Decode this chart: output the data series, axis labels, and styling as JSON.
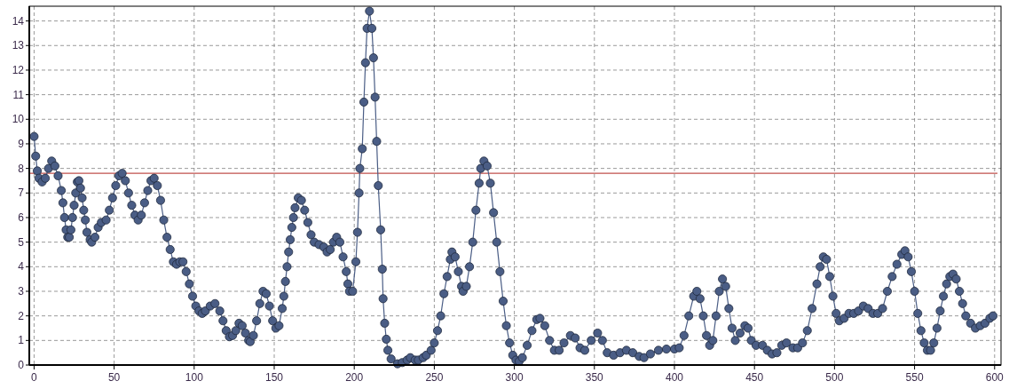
{
  "chart_data": {
    "type": "line",
    "marker": "circle",
    "line_style": "solid",
    "grid": true,
    "xlim": [
      -3,
      604
    ],
    "ylim": [
      0,
      14.6
    ],
    "xticks": [
      0,
      50,
      100,
      150,
      200,
      250,
      300,
      350,
      400,
      450,
      500,
      550,
      600
    ],
    "yticks": [
      0,
      1,
      2,
      3,
      4,
      5,
      6,
      7,
      8,
      9,
      10,
      11,
      12,
      13,
      14
    ],
    "ref_lines": [
      {
        "axis": "y",
        "value": 7.8,
        "color": "#c0504d"
      }
    ],
    "series": [
      {
        "color": "#4a5d85",
        "x": [
          0,
          1,
          2,
          3,
          5,
          7,
          9,
          11,
          13,
          15,
          17,
          18,
          19,
          20,
          21,
          22,
          23,
          24,
          25,
          26,
          27,
          28,
          29,
          30,
          31,
          32,
          33,
          35,
          36,
          38,
          40,
          42,
          45,
          47,
          49,
          51,
          53,
          55,
          57,
          59,
          61,
          63,
          65,
          67,
          69,
          71,
          73,
          75,
          77,
          79,
          81,
          83,
          85,
          87,
          89,
          91,
          93,
          95,
          97,
          99,
          101,
          103,
          105,
          107,
          110,
          113,
          116,
          118,
          120,
          122,
          124,
          126,
          128,
          130,
          132,
          134,
          135,
          137,
          139,
          141,
          143,
          145,
          147,
          149,
          151,
          153,
          155,
          156,
          157,
          158,
          159,
          160,
          161,
          162,
          163,
          165,
          167,
          169,
          171,
          173,
          175,
          178,
          181,
          183,
          185,
          187,
          189,
          191,
          193,
          195,
          196,
          197,
          199,
          201,
          202,
          203,
          203.5,
          205,
          206,
          207,
          208,
          209.5,
          211,
          212,
          213,
          214,
          215,
          216.5,
          217.5,
          218,
          219,
          220,
          221,
          223,
          227,
          230,
          233,
          235,
          238,
          240,
          243,
          245,
          248,
          250,
          252,
          254,
          256,
          258,
          260,
          261,
          263,
          265,
          267,
          268,
          270,
          272,
          274,
          276,
          278,
          279,
          281,
          283,
          285,
          287,
          289,
          291,
          293,
          295,
          297,
          299,
          301,
          303,
          305,
          308,
          311,
          314,
          316,
          319,
          322,
          325,
          328,
          331,
          335,
          338,
          341,
          344,
          348,
          352,
          355,
          358,
          362,
          366,
          370,
          374,
          378,
          381,
          385,
          390,
          395,
          400,
          403,
          406,
          409,
          412,
          414,
          416,
          418,
          420,
          422,
          424,
          426,
          428,
          430,
          432,
          434,
          436,
          438,
          441,
          444,
          446,
          448,
          451,
          455,
          458,
          461,
          464,
          467,
          470,
          474,
          477,
          480,
          483,
          486,
          489,
          491,
          493,
          495,
          497,
          499,
          501,
          503,
          506,
          509,
          512,
          515,
          518,
          521,
          524,
          527,
          530,
          533,
          536,
          539,
          542,
          544,
          546,
          548,
          550,
          552,
          554,
          556,
          558,
          560,
          562,
          564,
          566,
          568,
          570,
          572,
          574,
          576,
          578,
          580,
          582,
          585,
          588,
          591,
          594,
          597,
          599
        ],
        "values": [
          9.3,
          8.5,
          7.9,
          7.6,
          7.45,
          7.6,
          8.0,
          8.3,
          8.1,
          7.7,
          7.1,
          6.6,
          6.0,
          5.5,
          5.2,
          5.2,
          5.5,
          6.0,
          6.5,
          7.0,
          7.45,
          7.5,
          7.2,
          6.8,
          6.3,
          5.9,
          5.4,
          5.1,
          5.0,
          5.2,
          5.6,
          5.8,
          5.9,
          6.3,
          6.8,
          7.3,
          7.7,
          7.8,
          7.5,
          7.0,
          6.5,
          6.1,
          5.9,
          6.1,
          6.6,
          7.1,
          7.5,
          7.6,
          7.3,
          6.7,
          5.9,
          5.2,
          4.7,
          4.2,
          4.1,
          4.2,
          4.2,
          3.8,
          3.3,
          2.8,
          2.4,
          2.2,
          2.1,
          2.2,
          2.4,
          2.5,
          2.2,
          1.8,
          1.4,
          1.15,
          1.2,
          1.4,
          1.7,
          1.6,
          1.3,
          1.0,
          0.95,
          1.2,
          1.8,
          2.5,
          3.0,
          2.9,
          2.4,
          1.8,
          1.5,
          1.6,
          2.3,
          2.8,
          3.4,
          4.0,
          4.6,
          5.1,
          5.6,
          6.0,
          6.4,
          6.8,
          6.7,
          6.3,
          5.8,
          5.3,
          5.0,
          4.9,
          4.8,
          4.6,
          4.7,
          5.0,
          5.2,
          5.0,
          4.4,
          3.8,
          3.3,
          3.0,
          3.0,
          4.2,
          5.4,
          7.0,
          8.0,
          8.8,
          10.7,
          12.3,
          13.7,
          14.4,
          13.7,
          12.5,
          10.9,
          9.1,
          7.3,
          5.5,
          3.9,
          2.7,
          1.7,
          1.05,
          0.6,
          0.25,
          0.05,
          0.1,
          0.2,
          0.3,
          0.2,
          0.2,
          0.3,
          0.4,
          0.6,
          0.9,
          1.4,
          2.0,
          2.9,
          3.6,
          4.3,
          4.6,
          4.4,
          3.8,
          3.2,
          3.0,
          3.2,
          4.0,
          5.0,
          6.3,
          7.4,
          8.0,
          8.3,
          8.1,
          7.4,
          6.2,
          5.0,
          3.8,
          2.6,
          1.6,
          0.9,
          0.4,
          0.2,
          0.15,
          0.3,
          0.8,
          1.4,
          1.85,
          1.9,
          1.6,
          1.0,
          0.6,
          0.6,
          0.9,
          1.2,
          1.1,
          0.7,
          0.6,
          1.0,
          1.3,
          1.0,
          0.5,
          0.4,
          0.5,
          0.6,
          0.5,
          0.35,
          0.3,
          0.45,
          0.6,
          0.65,
          0.65,
          0.7,
          1.2,
          2.0,
          2.8,
          3.0,
          2.7,
          2.0,
          1.2,
          0.8,
          1.0,
          2.0,
          3.0,
          3.5,
          3.2,
          2.3,
          1.5,
          1.0,
          1.3,
          1.6,
          1.5,
          1.0,
          0.8,
          0.8,
          0.6,
          0.45,
          0.5,
          0.8,
          0.9,
          0.7,
          0.7,
          0.9,
          1.4,
          2.3,
          3.3,
          4.0,
          4.4,
          4.3,
          3.6,
          2.8,
          2.1,
          1.8,
          1.9,
          2.1,
          2.1,
          2.2,
          2.4,
          2.3,
          2.1,
          2.1,
          2.3,
          3.0,
          3.6,
          4.1,
          4.5,
          4.65,
          4.4,
          3.8,
          3.0,
          2.1,
          1.4,
          0.9,
          0.6,
          0.6,
          0.9,
          1.5,
          2.2,
          2.8,
          3.3,
          3.6,
          3.7,
          3.5,
          3.0,
          2.5,
          2.0,
          1.7,
          1.5,
          1.6,
          1.7,
          1.9,
          2.0
        ]
      }
    ]
  }
}
